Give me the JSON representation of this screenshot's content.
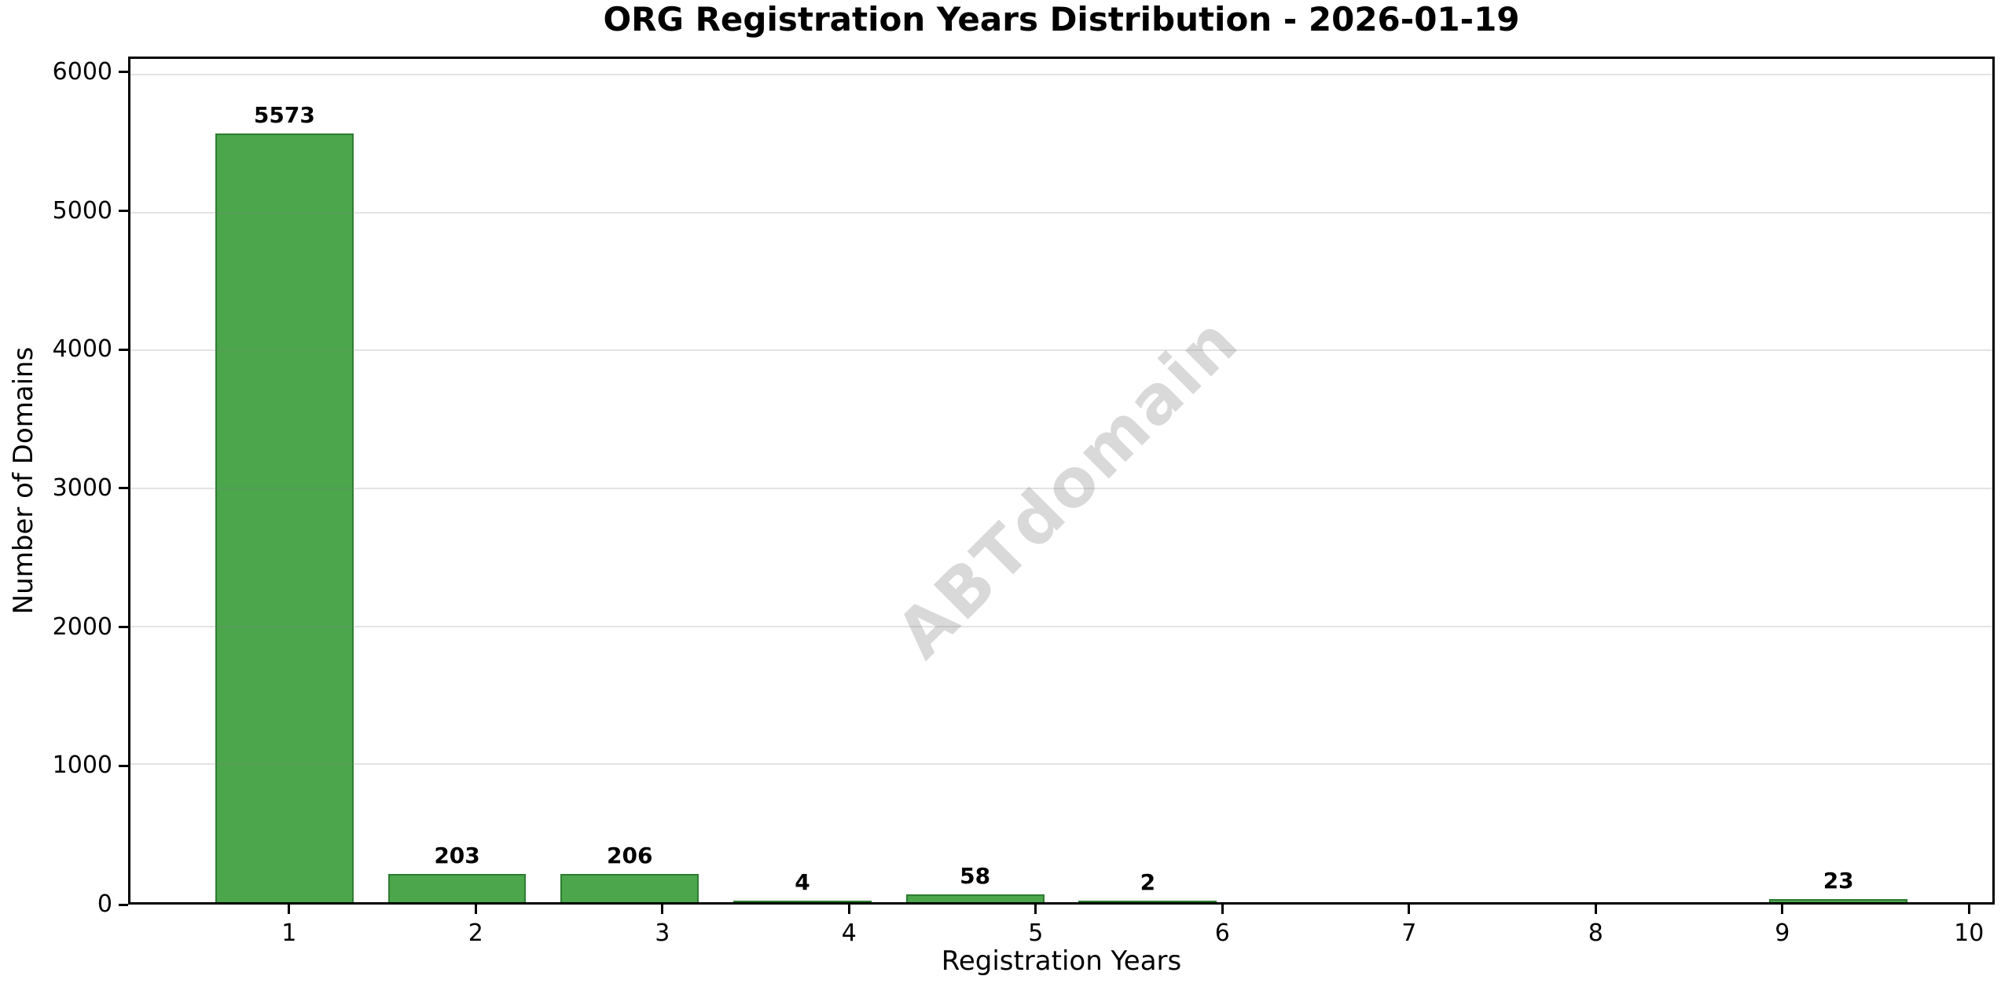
{
  "chart_data": {
    "type": "bar",
    "title": "ORG Registration Years Distribution - 2026-01-19",
    "xlabel": "Registration Years",
    "ylabel": "Number of Domains",
    "categories": [
      "1",
      "2",
      "3",
      "4",
      "5",
      "6",
      "7",
      "8",
      "9",
      "10"
    ],
    "values": [
      5573,
      203,
      206,
      4,
      58,
      2,
      0,
      0,
      0,
      23
    ],
    "bar_labels": [
      "5573",
      "203",
      "206",
      "4",
      "58",
      "2",
      "",
      "",
      "",
      "23"
    ],
    "yticks": [
      0,
      1000,
      2000,
      3000,
      4000,
      5000,
      6000
    ],
    "ylim": [
      0,
      6113
    ],
    "grid": "horizontal",
    "legend": "none",
    "bar_color": "#4BA64C",
    "bar_edge_color": "#2E7D32",
    "grid_color": "#dddddd",
    "watermark": "ABTdomain",
    "watermark_color": "#d9d9d9"
  }
}
